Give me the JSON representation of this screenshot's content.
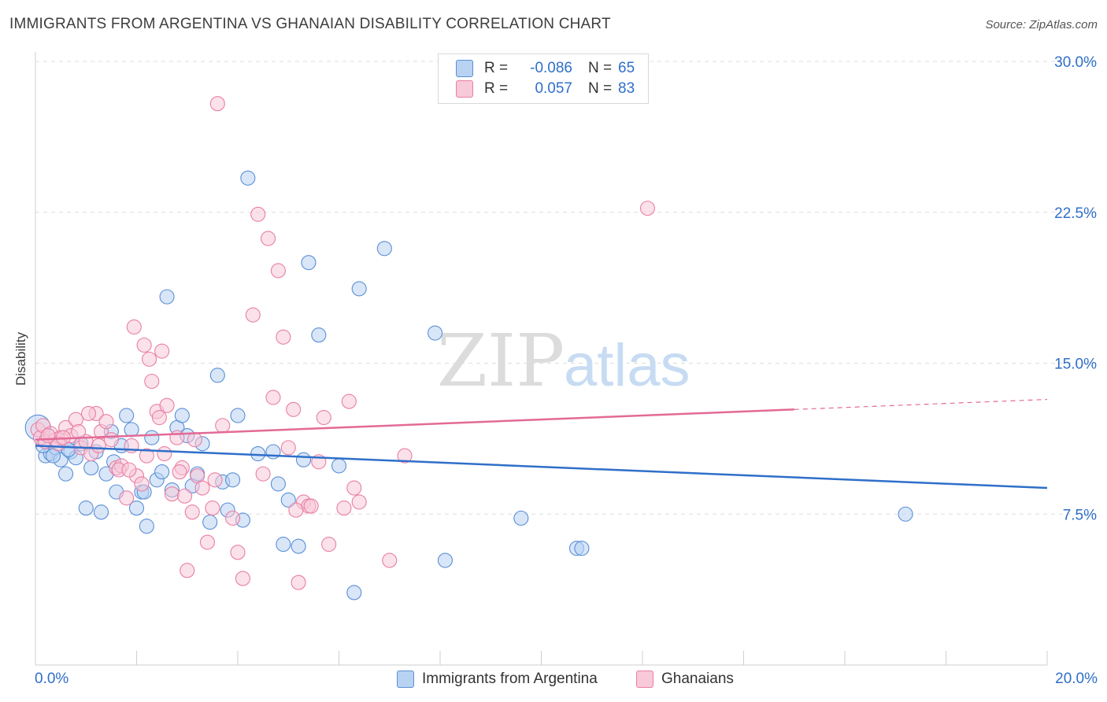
{
  "header": {
    "title": "IMMIGRANTS FROM ARGENTINA VS GHANAIAN DISABILITY CORRELATION CHART",
    "source": "Source: ZipAtlas.com"
  },
  "watermark": {
    "zip": "ZIP",
    "atlas": "atlas"
  },
  "legend": {
    "rows": [
      {
        "label": "R =",
        "r": "-0.086",
        "n_label": "N =",
        "n": "65",
        "fill": "#b8d2f2",
        "stroke": "#5a8fd6"
      },
      {
        "label": "R =",
        "r": "0.057",
        "n_label": "N =",
        "n": "83",
        "fill": "#f8c9d8",
        "stroke": "#e87fa3"
      }
    ]
  },
  "bottom_legend": [
    {
      "name": "Immigrants from Argentina",
      "fill": "#b8d2f2",
      "stroke": "#5a8fd6"
    },
    {
      "name": "Ghanaians",
      "fill": "#f8c9d8",
      "stroke": "#e87fa3"
    }
  ],
  "chart_data": {
    "type": "scatter",
    "title": "IMMIGRANTS FROM ARGENTINA VS GHANAIAN DISABILITY CORRELATION CHART",
    "xlabel": "",
    "ylabel": "Disability",
    "xlim": [
      0,
      20
    ],
    "ylim": [
      0,
      30
    ],
    "x_tick_labels": [
      "0.0%",
      "20.0%"
    ],
    "y_ticks": [
      7.5,
      15.0,
      22.5,
      30.0
    ],
    "y_tick_labels": [
      "7.5%",
      "15.0%",
      "22.5%",
      "30.0%"
    ],
    "grid": true,
    "legend_position": "top-center",
    "colors": {
      "blue": "#2f6fc9",
      "pink": "#e36a96"
    },
    "series": [
      {
        "name": "Immigrants from Argentina",
        "color": "#5a8fd6",
        "fill": "#b8d2f2",
        "r": -0.086,
        "n": 65,
        "trend": {
          "x": [
            0,
            20
          ],
          "y": [
            10.9,
            8.8
          ],
          "dash_from": null
        },
        "points": [
          [
            0.05,
            11.8
          ],
          [
            0.2,
            10.4
          ],
          [
            0.3,
            10.5
          ],
          [
            0.4,
            10.8
          ],
          [
            0.5,
            10.2
          ],
          [
            0.6,
            9.5
          ],
          [
            0.7,
            10.6
          ],
          [
            0.8,
            10.3
          ],
          [
            0.9,
            11.0
          ],
          [
            1.0,
            7.8
          ],
          [
            1.1,
            9.8
          ],
          [
            1.2,
            10.6
          ],
          [
            1.3,
            7.6
          ],
          [
            1.4,
            9.5
          ],
          [
            1.5,
            11.6
          ],
          [
            1.6,
            8.6
          ],
          [
            1.7,
            10.9
          ],
          [
            1.8,
            12.4
          ],
          [
            1.9,
            11.7
          ],
          [
            2.0,
            7.8
          ],
          [
            2.1,
            8.6
          ],
          [
            2.2,
            6.9
          ],
          [
            2.3,
            11.3
          ],
          [
            2.4,
            9.2
          ],
          [
            2.5,
            9.6
          ],
          [
            2.6,
            18.3
          ],
          [
            2.7,
            8.7
          ],
          [
            2.8,
            11.8
          ],
          [
            2.9,
            12.4
          ],
          [
            3.0,
            11.4
          ],
          [
            3.1,
            8.9
          ],
          [
            3.2,
            9.5
          ],
          [
            3.3,
            11.0
          ],
          [
            3.6,
            14.4
          ],
          [
            3.7,
            9.1
          ],
          [
            3.8,
            7.7
          ],
          [
            3.9,
            9.2
          ],
          [
            4.0,
            12.4
          ],
          [
            4.1,
            7.2
          ],
          [
            4.2,
            24.2
          ],
          [
            4.4,
            10.5
          ],
          [
            4.7,
            10.6
          ],
          [
            4.8,
            9.0
          ],
          [
            4.9,
            6.0
          ],
          [
            5.0,
            8.2
          ],
          [
            5.2,
            5.9
          ],
          [
            5.3,
            10.2
          ],
          [
            5.4,
            20.0
          ],
          [
            5.6,
            16.4
          ],
          [
            6.0,
            9.9
          ],
          [
            6.3,
            3.6
          ],
          [
            6.4,
            18.7
          ],
          [
            6.9,
            20.7
          ],
          [
            7.9,
            16.5
          ],
          [
            8.1,
            5.2
          ],
          [
            9.6,
            7.3
          ],
          [
            10.7,
            5.8
          ],
          [
            10.8,
            5.8
          ],
          [
            17.2,
            7.5
          ],
          [
            0.15,
            10.9
          ],
          [
            0.35,
            10.4
          ],
          [
            0.65,
            10.7
          ],
          [
            1.55,
            10.1
          ],
          [
            2.15,
            8.6
          ],
          [
            3.45,
            7.1
          ]
        ]
      },
      {
        "name": "Ghanaians",
        "color": "#e87fa3",
        "fill": "#f8c9d8",
        "r": 0.057,
        "n": 83,
        "trend": {
          "x": [
            0,
            20
          ],
          "y": [
            11.2,
            13.2
          ],
          "dash_from": 15.0
        },
        "points": [
          [
            0.05,
            11.7
          ],
          [
            0.1,
            11.3
          ],
          [
            0.15,
            11.9
          ],
          [
            0.2,
            11.1
          ],
          [
            0.3,
            11.5
          ],
          [
            0.4,
            11.2
          ],
          [
            0.5,
            11.3
          ],
          [
            0.6,
            11.8
          ],
          [
            0.7,
            11.4
          ],
          [
            0.8,
            12.2
          ],
          [
            0.9,
            10.8
          ],
          [
            1.0,
            11.1
          ],
          [
            1.1,
            10.5
          ],
          [
            1.2,
            12.5
          ],
          [
            1.3,
            11.6
          ],
          [
            1.4,
            12.1
          ],
          [
            1.5,
            11.2
          ],
          [
            1.6,
            9.8
          ],
          [
            1.7,
            9.9
          ],
          [
            1.8,
            8.3
          ],
          [
            1.9,
            10.9
          ],
          [
            2.0,
            9.4
          ],
          [
            2.1,
            9.0
          ],
          [
            2.2,
            10.4
          ],
          [
            2.3,
            14.1
          ],
          [
            2.4,
            12.6
          ],
          [
            2.5,
            15.6
          ],
          [
            2.6,
            12.9
          ],
          [
            2.7,
            8.5
          ],
          [
            2.8,
            11.3
          ],
          [
            2.9,
            9.8
          ],
          [
            3.0,
            4.7
          ],
          [
            3.1,
            7.6
          ],
          [
            3.2,
            9.4
          ],
          [
            3.3,
            8.8
          ],
          [
            3.4,
            6.1
          ],
          [
            3.5,
            7.8
          ],
          [
            3.6,
            27.9
          ],
          [
            3.7,
            11.9
          ],
          [
            3.9,
            7.3
          ],
          [
            4.0,
            5.6
          ],
          [
            4.1,
            4.3
          ],
          [
            4.3,
            17.4
          ],
          [
            4.4,
            22.4
          ],
          [
            4.5,
            9.5
          ],
          [
            4.6,
            21.2
          ],
          [
            4.7,
            13.3
          ],
          [
            4.8,
            19.6
          ],
          [
            4.9,
            16.3
          ],
          [
            5.0,
            10.8
          ],
          [
            5.1,
            12.7
          ],
          [
            5.2,
            4.1
          ],
          [
            5.3,
            8.1
          ],
          [
            5.4,
            7.9
          ],
          [
            5.6,
            10.1
          ],
          [
            5.7,
            12.3
          ],
          [
            5.8,
            6.0
          ],
          [
            6.1,
            7.8
          ],
          [
            6.2,
            13.1
          ],
          [
            6.3,
            8.8
          ],
          [
            6.4,
            8.1
          ],
          [
            7.0,
            5.2
          ],
          [
            7.3,
            10.4
          ],
          [
            12.1,
            22.7
          ],
          [
            1.95,
            16.8
          ],
          [
            2.15,
            15.9
          ],
          [
            2.25,
            15.2
          ],
          [
            0.45,
            11.0
          ],
          [
            0.85,
            11.6
          ],
          [
            1.25,
            10.9
          ],
          [
            1.65,
            9.7
          ],
          [
            2.55,
            10.5
          ],
          [
            2.85,
            9.6
          ],
          [
            3.15,
            11.2
          ],
          [
            3.55,
            9.2
          ],
          [
            0.25,
            11.4
          ],
          [
            1.05,
            12.5
          ],
          [
            1.85,
            9.7
          ],
          [
            2.45,
            12.3
          ],
          [
            2.95,
            8.4
          ],
          [
            5.15,
            7.7
          ],
          [
            5.45,
            7.9
          ],
          [
            0.55,
            11.3
          ]
        ]
      }
    ]
  }
}
